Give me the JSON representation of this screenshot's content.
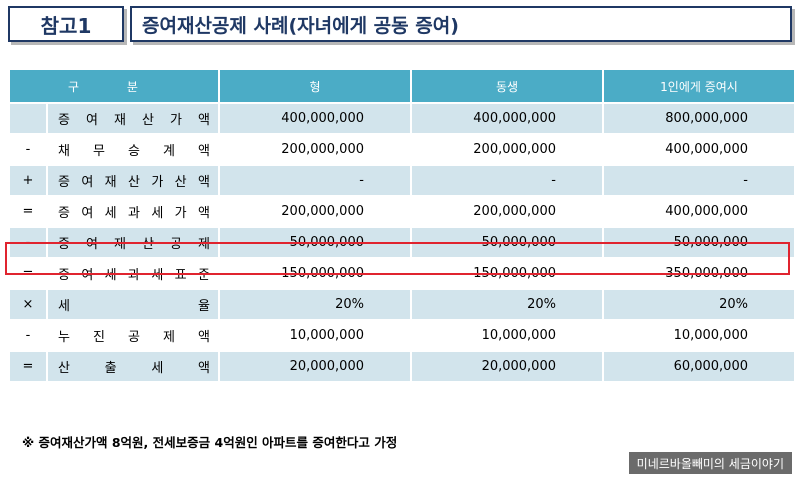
{
  "header": {
    "label": "참고1",
    "title": "증여재산공제 사례(자녀에게 공동 증여)"
  },
  "table": {
    "headers": [
      "구  분",
      "형",
      "동생",
      "1인에게 증여시"
    ],
    "rows": [
      {
        "op": "",
        "label": "증여재산가액",
        "values": [
          "400,000,000",
          "400,000,000",
          "800,000,000"
        ]
      },
      {
        "op": "-",
        "label": "채무승계액",
        "values": [
          "200,000,000",
          "200,000,000",
          "400,000,000"
        ]
      },
      {
        "op": "+",
        "label": "증여재산가산액",
        "values": [
          "-",
          "-",
          "-"
        ]
      },
      {
        "op": "=",
        "label": "증여세과세가액",
        "values": [
          "200,000,000",
          "200,000,000",
          "400,000,000"
        ]
      },
      {
        "op": "-",
        "label": "증여재산공제",
        "values": [
          "50,000,000",
          "50,000,000",
          "50,000,000"
        ]
      },
      {
        "op": "=",
        "label": "증여세과세표준",
        "values": [
          "150,000,000",
          "150,000,000",
          "350,000,000"
        ]
      },
      {
        "op": "×",
        "label": "세율",
        "values": [
          "20%",
          "20%",
          "20%"
        ]
      },
      {
        "op": "-",
        "label": "누진공제액",
        "values": [
          "10,000,000",
          "10,000,000",
          "10,000,000"
        ]
      },
      {
        "op": "=",
        "label": "산출세액",
        "values": [
          "20,000,000",
          "20,000,000",
          "60,000,000"
        ]
      }
    ]
  },
  "footnote": "※ 증여재산가액 8억원, 전세보증금 4억원인 아파트를 증여한다고 가정",
  "watermark": "미네르바올빼미의 세금이야기",
  "colors": {
    "header_border": "#1f3864",
    "table_header": "#4bacc6",
    "row_shade": "#d2e4ec",
    "highlight": "#e0242f"
  }
}
